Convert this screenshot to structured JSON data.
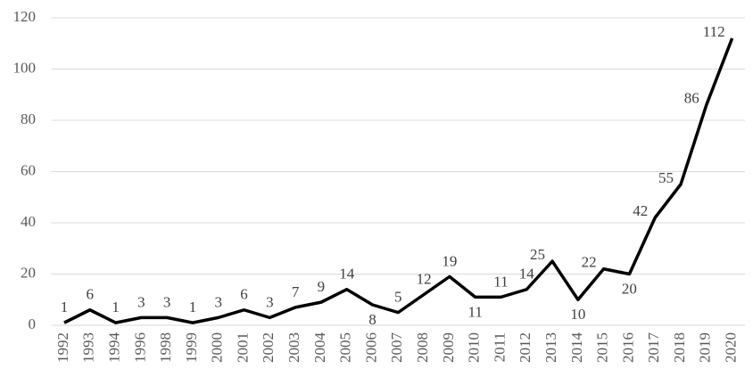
{
  "chart_data": {
    "type": "line",
    "categories": [
      "1992",
      "1993",
      "1994",
      "1996",
      "1998",
      "1999",
      "2000",
      "2001",
      "2002",
      "2003",
      "2004",
      "2005",
      "2006",
      "2007",
      "2008",
      "2009",
      "2010",
      "2011",
      "2012",
      "2013",
      "2014",
      "2015",
      "2016",
      "2017",
      "2018",
      "2019",
      "2020"
    ],
    "values": [
      1,
      6,
      1,
      3,
      3,
      1,
      3,
      6,
      3,
      7,
      9,
      14,
      8,
      5,
      12,
      19,
      11,
      11,
      14,
      25,
      10,
      22,
      20,
      42,
      55,
      86,
      112
    ],
    "color": "#000000",
    "ylim": [
      0,
      120
    ],
    "yticks": [
      0,
      20,
      40,
      60,
      80,
      100,
      120
    ],
    "grid": true
  }
}
